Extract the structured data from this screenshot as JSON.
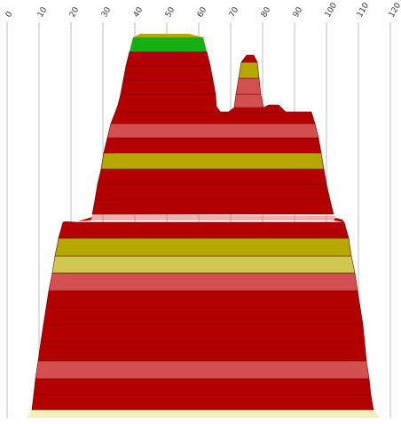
{
  "axis": {
    "min": 0,
    "max": 120,
    "step": 10,
    "tick_labels": [
      "0",
      "10",
      "20",
      "30",
      "40",
      "50",
      "60",
      "70",
      "80",
      "90",
      "100",
      "110",
      "120"
    ]
  },
  "colors": {
    "dark_red": "#b30000",
    "salmon": "#d45050",
    "olive": "#b5a800",
    "khaki": "#cfc84e",
    "green": "#12b012",
    "cream": "#f5efc0",
    "grid": "#bdbdbd"
  }
}
